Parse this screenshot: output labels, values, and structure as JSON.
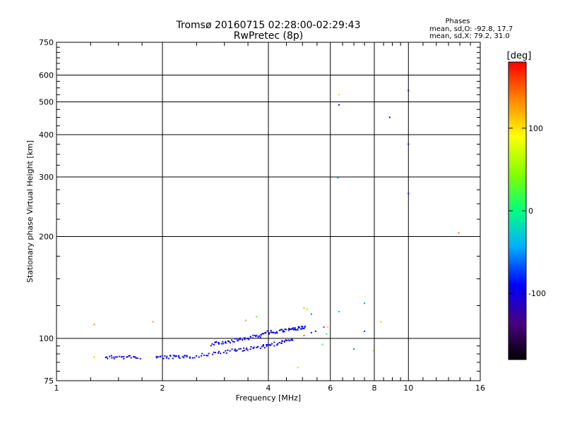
{
  "chart_data": {
    "type": "scatter",
    "title": "Tromsø 20160715 02:28:00-02:29:43",
    "subtitle": "RwPretec (8p)",
    "xlabel": "Frequency [MHz]",
    "ylabel": "Stationary phase Virtual Height [km]",
    "x_scale": "log",
    "y_scale": "log",
    "xlim": [
      1,
      16
    ],
    "ylim": [
      75,
      750
    ],
    "x_ticks": [
      1,
      2,
      4,
      6,
      8,
      10,
      16
    ],
    "x_tick_labels": [
      "1",
      "2",
      "4",
      "6",
      "8",
      "10",
      "16"
    ],
    "y_ticks": [
      75,
      100,
      200,
      300,
      400,
      500,
      600,
      750
    ],
    "y_tick_labels": [
      "75",
      "100",
      "200",
      "300",
      "400",
      "500",
      "600",
      "750"
    ],
    "grid": true,
    "stats": {
      "title": "Phases",
      "line_o": "mean, sd,O: -92.8, 17.7",
      "line_x": "mean, sd,X:  79.2, 31.0"
    },
    "colorbar": {
      "label": "[deg]",
      "range": [
        -180,
        180
      ],
      "ticks": [
        100,
        0,
        -100
      ],
      "tick_labels": [
        "100",
        "0",
        "-100"
      ]
    },
    "points": [
      {
        "x": 1.28,
        "y": 110,
        "phase": 130
      },
      {
        "x": 1.28,
        "y": 88,
        "phase": 110
      },
      {
        "x": 1.88,
        "y": 112,
        "phase": 130
      },
      {
        "x": 3.45,
        "y": 113,
        "phase": 120
      },
      {
        "x": 3.7,
        "y": 116,
        "phase": 30
      },
      {
        "x": 5.05,
        "y": 123,
        "phase": 120
      },
      {
        "x": 5.15,
        "y": 122,
        "phase": 40
      },
      {
        "x": 5.3,
        "y": 118,
        "phase": -60
      },
      {
        "x": 5.3,
        "y": 104,
        "phase": -90
      },
      {
        "x": 5.05,
        "y": 102,
        "phase": 150
      },
      {
        "x": 4.85,
        "y": 82,
        "phase": 110
      },
      {
        "x": 5.75,
        "y": 108,
        "phase": 170
      },
      {
        "x": 5.9,
        "y": 108,
        "phase": 70
      },
      {
        "x": 5.85,
        "y": 103,
        "phase": 10
      },
      {
        "x": 5.45,
        "y": 105,
        "phase": -100
      },
      {
        "x": 5.7,
        "y": 96,
        "phase": 20
      },
      {
        "x": 6.35,
        "y": 120,
        "phase": -30
      },
      {
        "x": 7.0,
        "y": 93,
        "phase": -60
      },
      {
        "x": 7.5,
        "y": 127,
        "phase": -50
      },
      {
        "x": 7.5,
        "y": 105,
        "phase": -80
      },
      {
        "x": 7.95,
        "y": 92,
        "phase": 110
      },
      {
        "x": 8.35,
        "y": 112,
        "phase": 110
      },
      {
        "x": 6.35,
        "y": 525,
        "phase": 100
      },
      {
        "x": 6.35,
        "y": 490,
        "phase": -110
      },
      {
        "x": 6.3,
        "y": 298,
        "phase": -40
      },
      {
        "x": 8.85,
        "y": 450,
        "phase": -100
      },
      {
        "x": 10.0,
        "y": 540,
        "phase": -110
      },
      {
        "x": 10.0,
        "y": 375,
        "phase": -100
      },
      {
        "x": 10.0,
        "y": 268,
        "phase": -100
      },
      {
        "x": 13.9,
        "y": 205,
        "phase": 140
      }
    ],
    "o_trace": {
      "phase": -100,
      "segments": [
        {
          "f0": 1.38,
          "f1": 1.72,
          "y0": 88,
          "y1": 88
        },
        {
          "f0": 1.92,
          "f1": 2.35,
          "y0": 88,
          "y1": 88
        },
        {
          "f0": 2.35,
          "f1": 3.2,
          "y0": 88,
          "y1": 92
        },
        {
          "f0": 3.2,
          "f1": 3.95,
          "y0": 92,
          "y1": 95
        },
        {
          "f0": 3.95,
          "f1": 4.7,
          "y0": 95,
          "y1": 99
        },
        {
          "f0": 2.75,
          "f1": 3.3,
          "y0": 96,
          "y1": 99
        },
        {
          "f0": 3.3,
          "f1": 3.95,
          "y0": 99,
          "y1": 103
        },
        {
          "f0": 3.95,
          "f1": 4.6,
          "y0": 104,
          "y1": 106
        },
        {
          "f0": 4.6,
          "f1": 5.1,
          "y0": 106,
          "y1": 108
        }
      ]
    }
  }
}
